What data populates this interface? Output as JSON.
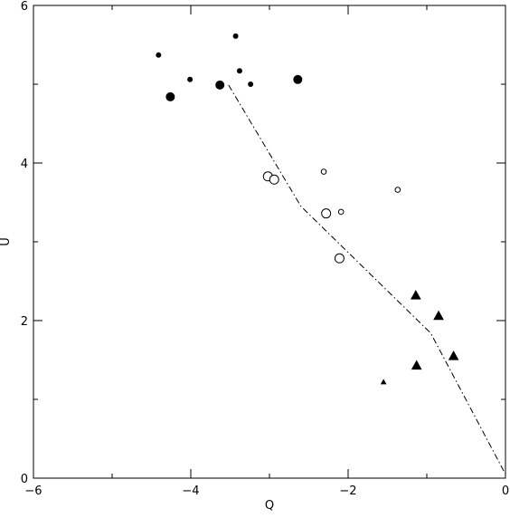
{
  "chart_data": {
    "type": "scatter",
    "x_label": "Q",
    "y_label": "U",
    "xlim": [
      -6,
      0
    ],
    "ylim": [
      0,
      6
    ],
    "xticks": [
      {
        "value": -6,
        "label": "−6"
      },
      {
        "value": -4,
        "label": "−4"
      },
      {
        "value": -2,
        "label": "−2"
      },
      0
    ],
    "yticks": [
      0,
      2,
      4,
      6
    ],
    "xminor": [
      -5,
      -3,
      -1
    ],
    "yminor": [
      1,
      3,
      5
    ],
    "color": "#000000",
    "series": [
      {
        "marker": "circle",
        "filled": true,
        "size": 2.5,
        "x": [
          -4.41,
          -3.43,
          -4.01,
          -3.38,
          -3.24
        ],
        "values": [
          5.37,
          5.61,
          5.06,
          5.17,
          5.0
        ]
      },
      {
        "marker": "circle",
        "filled": true,
        "size": 4.5,
        "x": [
          -4.26,
          -3.63,
          -2.64
        ],
        "values": [
          4.84,
          4.99,
          5.06
        ]
      },
      {
        "marker": "circle",
        "filled": false,
        "size": 5,
        "x": [
          -3.02,
          -2.94,
          -2.28,
          -2.11
        ],
        "values": [
          3.83,
          3.79,
          3.36,
          2.79
        ]
      },
      {
        "marker": "circle",
        "filled": false,
        "size": 2.8,
        "x": [
          -2.31,
          -2.09,
          -1.37
        ],
        "values": [
          3.89,
          3.38,
          3.66
        ]
      },
      {
        "marker": "triangle",
        "filled": true,
        "size": 5,
        "x": [
          -1.14,
          -0.85,
          -0.66,
          -1.13
        ],
        "values": [
          2.32,
          2.06,
          1.55,
          1.43
        ]
      },
      {
        "marker": "triangle",
        "filled": true,
        "size": 2.5,
        "x": [
          -1.55
        ],
        "values": [
          1.22
        ]
      }
    ],
    "line": {
      "dash": "dashdot",
      "x": [
        -3.52,
        -2.6,
        -0.95,
        0
      ],
      "values": [
        4.99,
        3.45,
        1.84,
        0.05
      ]
    }
  }
}
